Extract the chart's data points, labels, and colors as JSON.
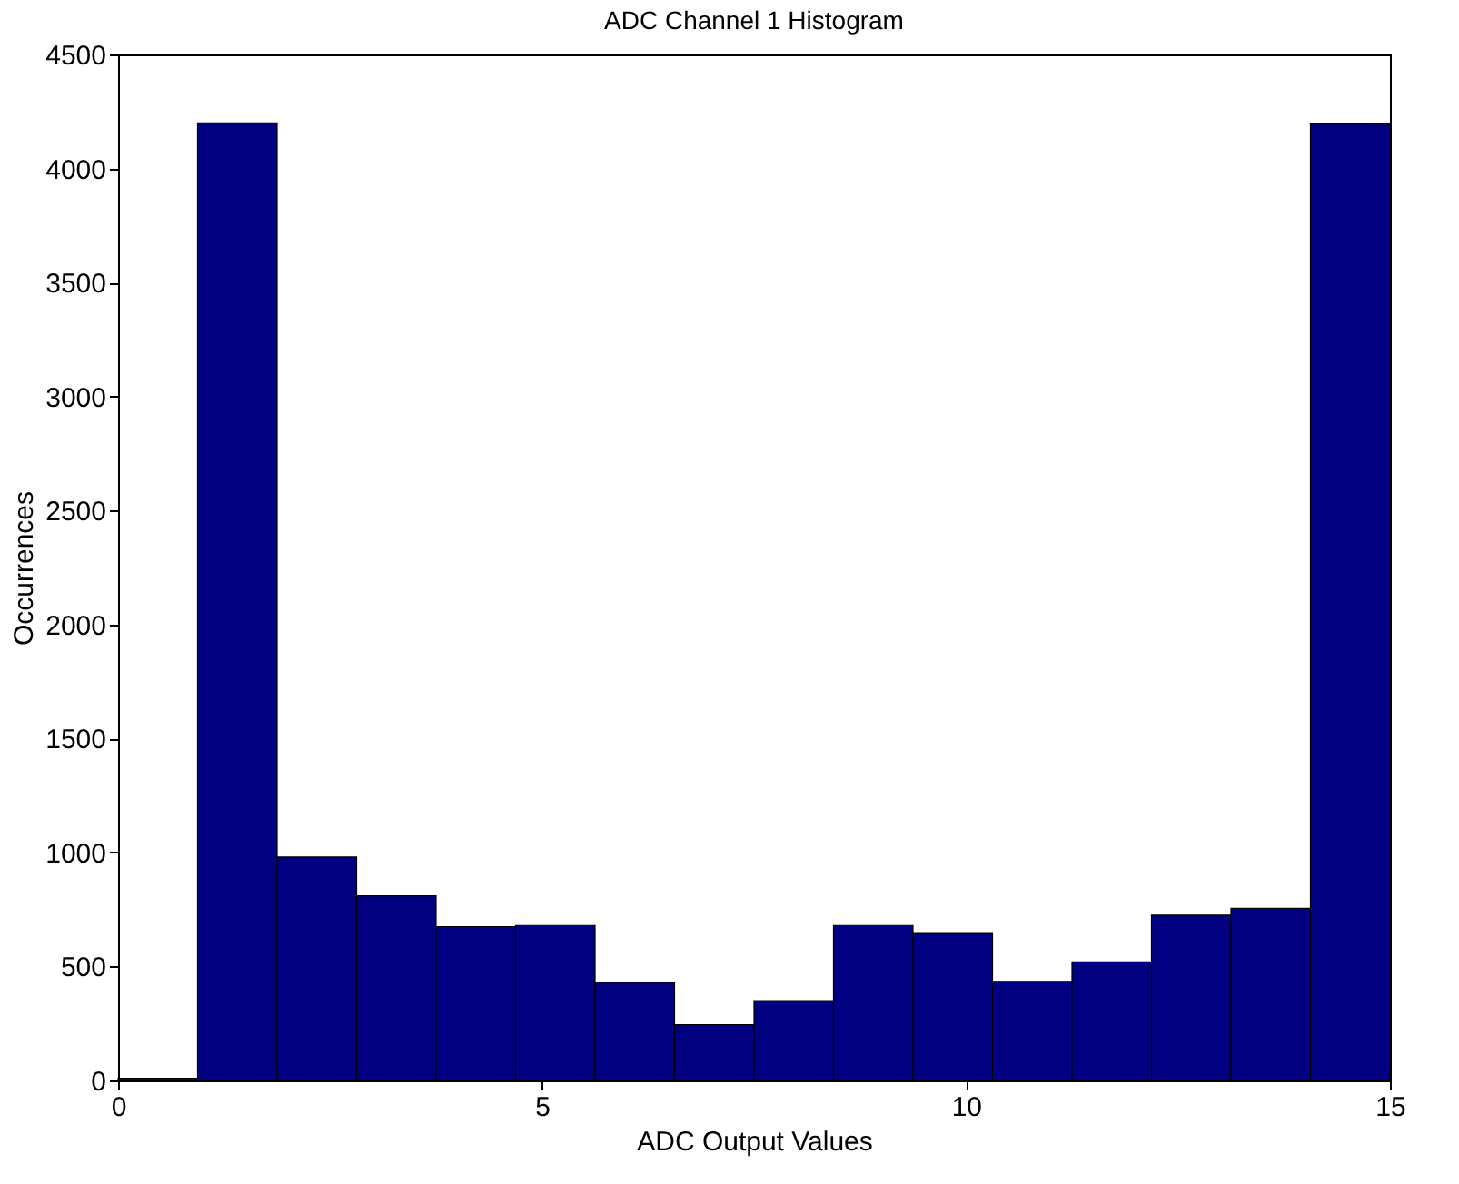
{
  "chart_data": {
    "type": "histogram",
    "title": "ADC Channel 1 Histogram",
    "xlabel": "ADC Output Values",
    "ylabel": "Occurrences",
    "bins": [
      0,
      0.9375,
      1.875,
      2.8125,
      3.75,
      4.6875,
      5.625,
      6.5625,
      7.5,
      8.4375,
      9.375,
      10.3125,
      11.25,
      12.1875,
      13.125,
      14.0625,
      15
    ],
    "values": [
      10,
      4200,
      980,
      810,
      675,
      680,
      430,
      245,
      350,
      680,
      645,
      435,
      520,
      725,
      755,
      4195
    ],
    "color": "#000080",
    "xlim": [
      0,
      15
    ],
    "xticks": [
      0,
      5,
      10,
      15
    ],
    "ylim": [
      0,
      4500
    ],
    "yticks": [
      0,
      500,
      1000,
      1500,
      2000,
      2500,
      3000,
      3500,
      4000,
      4500
    ]
  }
}
